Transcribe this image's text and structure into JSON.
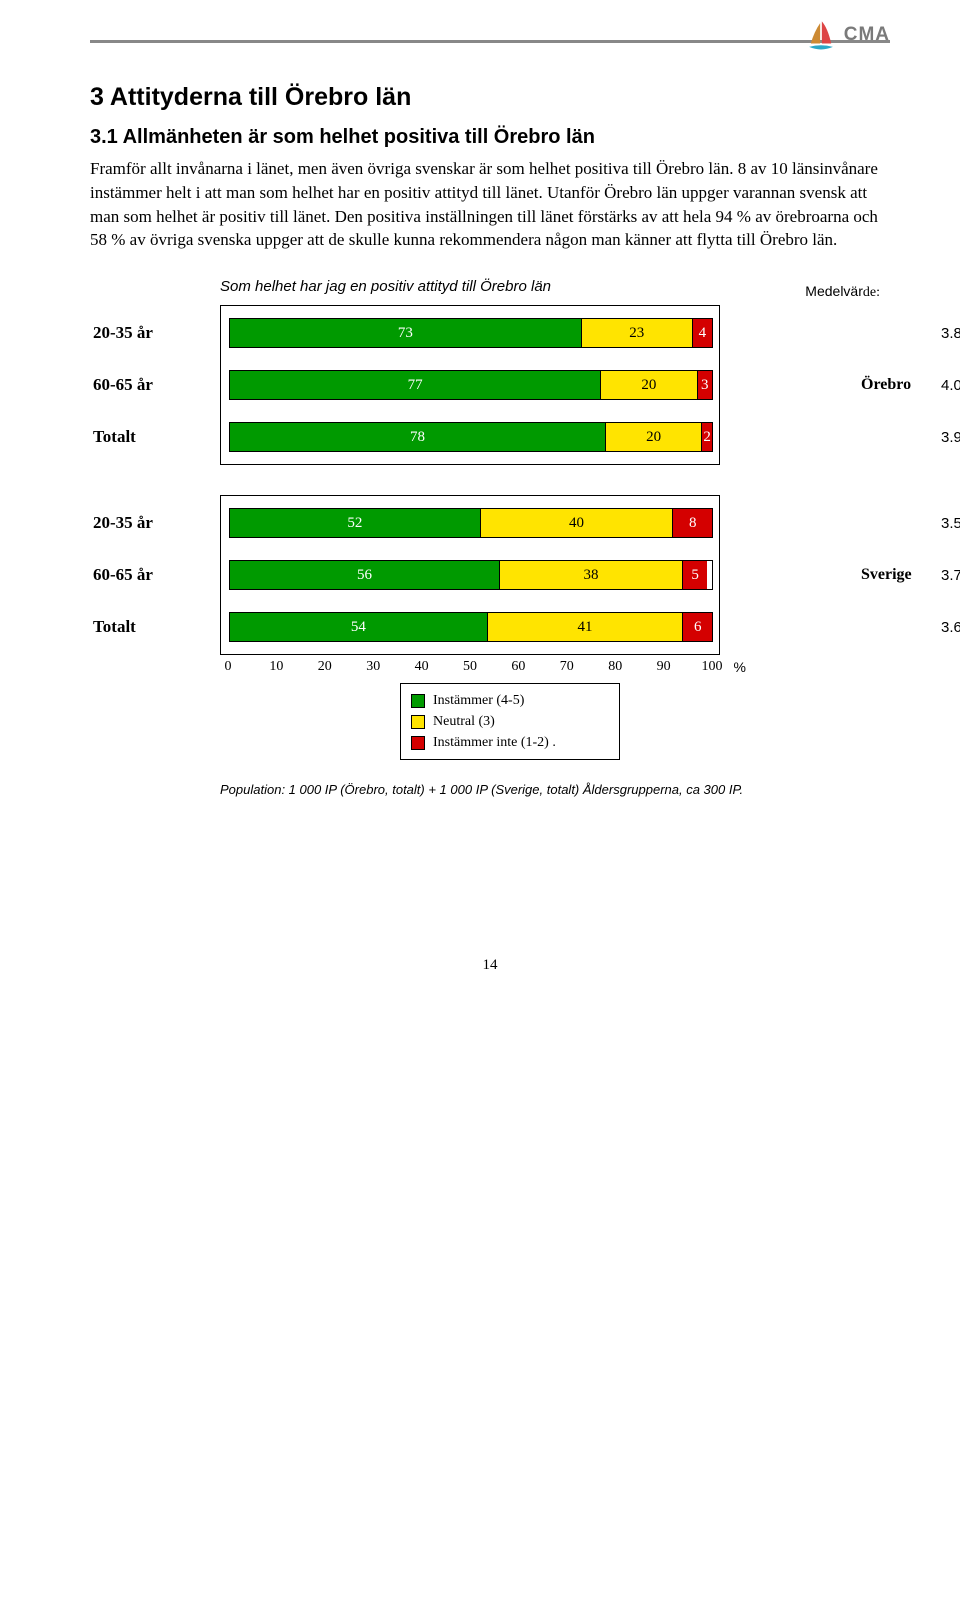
{
  "header": {
    "logo_text": "CMA"
  },
  "section": {
    "title": "3   Attityderna till Örebro län",
    "subtitle": "3.1   Allmänheten är som helhet positiva till Örebro län",
    "body": "Framför allt invånarna i länet, men även övriga svenskar är som helhet positiva till Örebro län. 8 av 10 länsinvånare instämmer helt i att man som helhet har en positiv attityd till länet. Utanför Örebro län uppger varannan svensk att man som helhet är positiv till länet. Den positiva inställningen till länet förstärks av att hela 94 % av örebroarna och 58 % av övriga svenska uppger att de skulle kunna rekommendera någon man känner att flytta till Örebro län."
  },
  "chart": {
    "title": "Som helhet har jag en positiv attityd till Örebro län",
    "mv_header": "Medelvärde:",
    "colors": {
      "green": "#009a00",
      "yellow": "#ffe400",
      "red": "#d40000",
      "border": "#000000",
      "bg": "#ffffff"
    },
    "groups": [
      {
        "side_label": "Örebro",
        "rows": [
          {
            "label": "20-35 år",
            "segments": [
              73,
              23,
              4
            ],
            "mv": "3.8"
          },
          {
            "label": "60-65 år",
            "segments": [
              77,
              20,
              3
            ],
            "mv": "4.0"
          },
          {
            "label": "Totalt",
            "segments": [
              78,
              20,
              2
            ],
            "mv": "3.9"
          }
        ]
      },
      {
        "side_label": "Sverige",
        "rows": [
          {
            "label": "20-35 år",
            "segments": [
              52,
              40,
              8
            ],
            "mv": "3.5"
          },
          {
            "label": "60-65 år",
            "segments": [
              56,
              38,
              5
            ],
            "mv": "3.7"
          },
          {
            "label": "Totalt",
            "segments": [
              54,
              41,
              6
            ],
            "mv": "3.6"
          }
        ]
      }
    ],
    "axis": {
      "ticks": [
        0,
        10,
        20,
        30,
        40,
        50,
        60,
        70,
        80,
        90,
        100
      ],
      "pct": "%"
    },
    "legend": [
      {
        "color": "green",
        "text": "Instämmer (4-5)"
      },
      {
        "color": "yellow",
        "text": "Neutral (3)"
      },
      {
        "color": "red",
        "text": "Instämmer inte (1-2)"
      }
    ],
    "legend_trail": ".",
    "footnote": "Population: 1 000 IP (Örebro, totalt) + 1 000 IP (Sverige, totalt) Åldersgrupperna, ca 300 IP."
  },
  "page_number": "14"
}
